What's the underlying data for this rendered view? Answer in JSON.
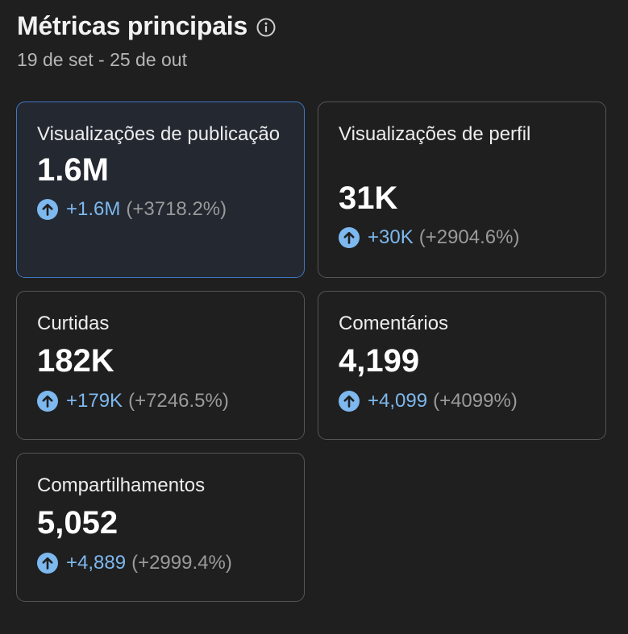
{
  "header": {
    "title": "Métricas principais",
    "info_icon": "info-circle-icon",
    "date_range": "19 de set - 25 de out"
  },
  "colors": {
    "background": "#1f1f1f",
    "card_border": "#555555",
    "selected_border": "#3f77c4",
    "accent_blue": "#7db8ee",
    "muted_text": "#9a9a9a"
  },
  "metrics": [
    {
      "label": "Visualizações de publicação",
      "value": "1.6M",
      "delta": "+1.6M",
      "percent": "(+3718.2%)",
      "selected": true,
      "icon": "arrow-up-circle-icon"
    },
    {
      "label": "Visualizações de perfil",
      "value": "31K",
      "delta": "+30K",
      "percent": "(+2904.6%)",
      "selected": false,
      "icon": "arrow-up-circle-icon"
    },
    {
      "label": "Curtidas",
      "value": "182K",
      "delta": "+179K",
      "percent": "(+7246.5%)",
      "selected": false,
      "icon": "arrow-up-circle-icon"
    },
    {
      "label": "Comentários",
      "value": "4,199",
      "delta": "+4,099",
      "percent": "(+4099%)",
      "selected": false,
      "icon": "arrow-up-circle-icon"
    },
    {
      "label": "Compartilhamentos",
      "value": "5,052",
      "delta": "+4,889",
      "percent": "(+2999.4%)",
      "selected": false,
      "icon": "arrow-up-circle-icon"
    }
  ]
}
